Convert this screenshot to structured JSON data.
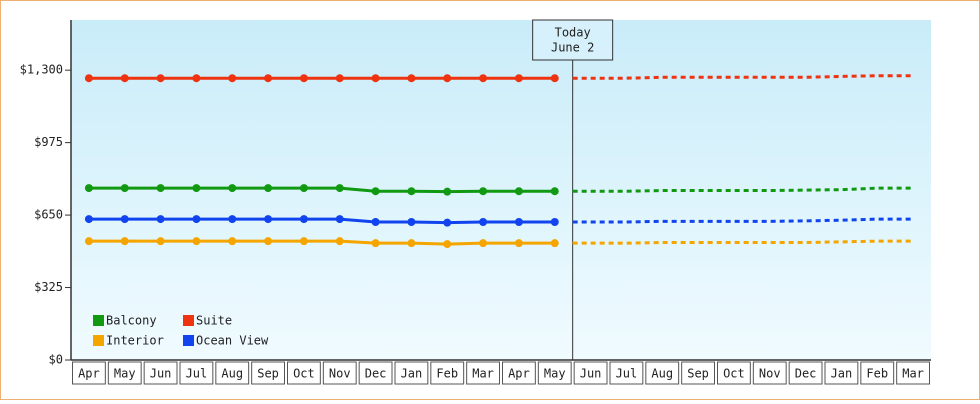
{
  "chart_data": {
    "type": "line",
    "categories": [
      "Apr",
      "May",
      "Jun",
      "Jul",
      "Aug",
      "Sep",
      "Oct",
      "Nov",
      "Dec",
      "Jan",
      "Feb",
      "Mar",
      "Apr",
      "May",
      "Jun",
      "Jul",
      "Aug",
      "Sep",
      "Oct",
      "Nov",
      "Dec",
      "Jan",
      "Feb",
      "Mar"
    ],
    "ylim": [
      0,
      1525
    ],
    "yticks": [
      {
        "value": 0,
        "label": "$0"
      },
      {
        "value": 325,
        "label": "$325"
      },
      {
        "value": 650,
        "label": "$650"
      },
      {
        "value": 975,
        "label": "$975"
      },
      {
        "value": 1300,
        "label": "$1,300"
      }
    ],
    "annotation": [
      "Today",
      "June 2"
    ],
    "series": [
      {
        "name": "Balcony",
        "color": "#119911",
        "values": [
          771,
          771,
          771,
          771,
          771,
          771,
          771,
          771,
          757,
          757,
          755,
          757,
          757,
          757,
          null,
          null,
          null,
          null,
          null,
          null,
          null,
          null,
          null,
          null
        ],
        "forecast": [
          null,
          null,
          null,
          null,
          null,
          null,
          null,
          null,
          null,
          null,
          null,
          null,
          null,
          757,
          757,
          757,
          760,
          760,
          760,
          760,
          762,
          764,
          771,
          771
        ]
      },
      {
        "name": "Suite",
        "color": "#ee3311",
        "values": [
          1264,
          1264,
          1264,
          1264,
          1264,
          1264,
          1264,
          1264,
          1264,
          1264,
          1264,
          1264,
          1264,
          1264,
          null,
          null,
          null,
          null,
          null,
          null,
          null,
          null,
          null,
          null
        ],
        "forecast": [
          null,
          null,
          null,
          null,
          null,
          null,
          null,
          null,
          null,
          null,
          null,
          null,
          null,
          1264,
          1264,
          1264,
          1268,
          1268,
          1268,
          1268,
          1268,
          1272,
          1275,
          1275
        ]
      },
      {
        "name": "Interior",
        "color": "#f5a500",
        "values": [
          533,
          533,
          533,
          533,
          533,
          533,
          533,
          533,
          524,
          524,
          520,
          524,
          524,
          524,
          null,
          null,
          null,
          null,
          null,
          null,
          null,
          null,
          null,
          null
        ],
        "forecast": [
          null,
          null,
          null,
          null,
          null,
          null,
          null,
          null,
          null,
          null,
          null,
          null,
          null,
          524,
          524,
          524,
          527,
          527,
          527,
          527,
          527,
          530,
          533,
          533
        ]
      },
      {
        "name": "Ocean View",
        "color": "#1144ee",
        "values": [
          632,
          632,
          632,
          632,
          632,
          632,
          632,
          632,
          619,
          619,
          616,
          619,
          619,
          619,
          null,
          null,
          null,
          null,
          null,
          null,
          null,
          null,
          null,
          null
        ],
        "forecast": [
          null,
          null,
          null,
          null,
          null,
          null,
          null,
          null,
          null,
          null,
          null,
          null,
          null,
          619,
          619,
          619,
          622,
          622,
          622,
          622,
          624,
          627,
          632,
          632
        ]
      }
    ]
  }
}
